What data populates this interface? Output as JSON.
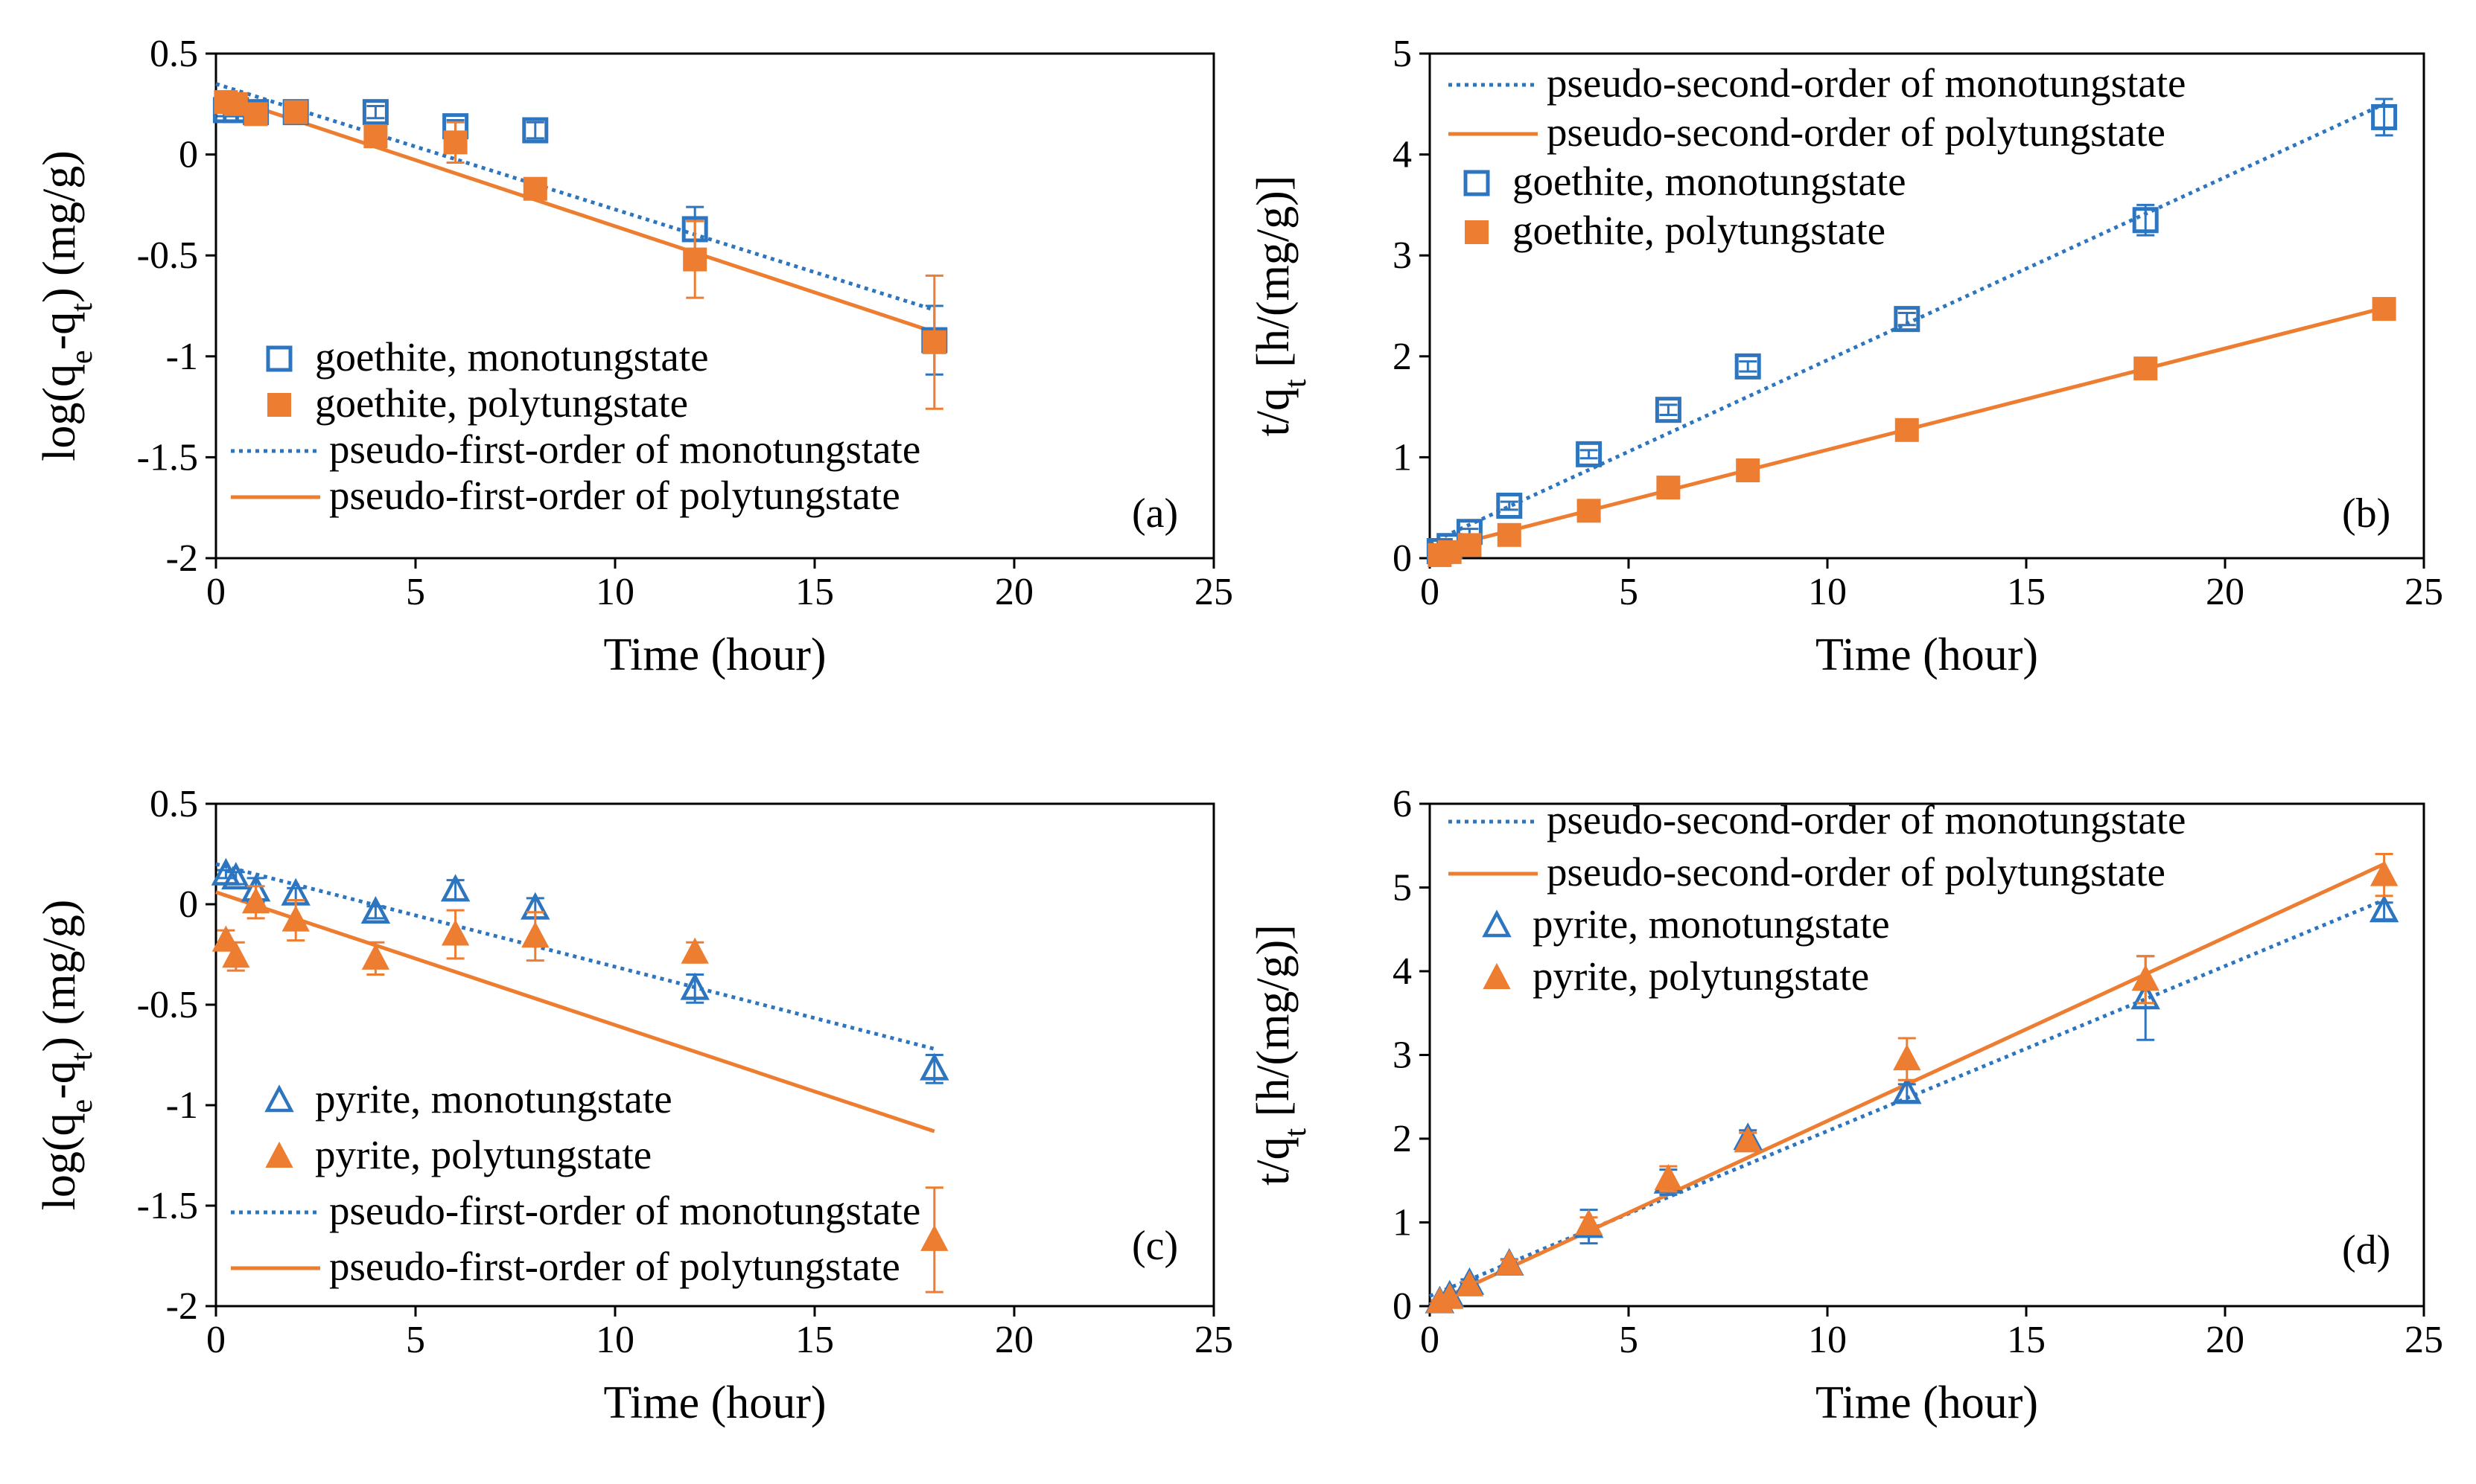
{
  "colors": {
    "mono": "#2E75C0",
    "poly": "#ED7D31",
    "axis": "#000000"
  },
  "chart_data": [
    {
      "panel": "a",
      "type": "scatter",
      "title": "",
      "panel_label": "(a)",
      "xlabel": "Time (hour)",
      "ylabel": {
        "pre": "log(q",
        "s1": "e",
        "mid": "-q",
        "s2": "t",
        "post": ") (mg/g)"
      },
      "xlim": [
        0,
        25
      ],
      "ylim": [
        -2,
        0.5
      ],
      "xticks": [
        0,
        5,
        10,
        15,
        20,
        25
      ],
      "yticks": [
        0.5,
        0,
        -0.5,
        -1,
        -1.5,
        -2
      ],
      "ytick_labels": [
        "0.5",
        "0",
        "-0.5",
        "-1",
        "-1.5",
        "-2"
      ],
      "legend_position": "bottom-left",
      "legend": [
        {
          "label": "goethite, monotungstate",
          "kind": "open-square",
          "color": "mono"
        },
        {
          "label": "goethite, polytungstate",
          "kind": "filled-square",
          "color": "poly"
        },
        {
          "label": "pseudo-first-order of monotungstate",
          "kind": "dotted",
          "color": "mono"
        },
        {
          "label": "pseudo-first-order of polytungstate",
          "kind": "solid",
          "color": "poly"
        }
      ],
      "series": [
        {
          "name": "goethite, monotungstate",
          "marker": "open-square",
          "color": "mono",
          "x": [
            0.25,
            0.5,
            1,
            2,
            4,
            6,
            8,
            12,
            18
          ],
          "y": [
            0.22,
            0.22,
            0.21,
            0.21,
            0.21,
            0.14,
            0.12,
            -0.37,
            -0.92
          ],
          "err": [
            0.03,
            0.03,
            0.03,
            0.02,
            0.03,
            0.03,
            0.04,
            0.11,
            0.17
          ]
        },
        {
          "name": "goethite, polytungstate",
          "marker": "filled-square",
          "color": "poly",
          "x": [
            0.25,
            0.5,
            1,
            2,
            4,
            6,
            8,
            12,
            18
          ],
          "y": [
            0.26,
            0.25,
            0.2,
            0.21,
            0.09,
            0.06,
            -0.17,
            -0.52,
            -0.93
          ],
          "err": [
            0.02,
            0.02,
            0.03,
            0.02,
            0.03,
            0.1,
            0.03,
            0.19,
            0.33
          ]
        }
      ],
      "fits": [
        {
          "name": "pseudo-first-order of monotungstate",
          "style": "dotted",
          "color": "mono",
          "x": [
            0,
            18
          ],
          "y": [
            0.35,
            -0.77
          ]
        },
        {
          "name": "pseudo-first-order of polytungstate",
          "style": "solid",
          "color": "poly",
          "x": [
            0,
            18
          ],
          "y": [
            0.3,
            -0.88
          ]
        }
      ]
    },
    {
      "panel": "b",
      "type": "scatter",
      "title": "",
      "panel_label": "(b)",
      "xlabel": "Time (hour)",
      "ylabel": {
        "pre": "t/q",
        "s1": "t",
        "post": " [h/(mg/g)]"
      },
      "xlim": [
        0,
        25
      ],
      "ylim": [
        0,
        5
      ],
      "xticks": [
        0,
        5,
        10,
        15,
        20,
        25
      ],
      "yticks": [
        5,
        4,
        3,
        2,
        1,
        0
      ],
      "ytick_labels": [
        "5",
        "4",
        "3",
        "2",
        "1",
        "0"
      ],
      "legend_position": "top-left",
      "legend": [
        {
          "label": "pseudo-second-order of monotungstate",
          "kind": "dotted",
          "color": "mono"
        },
        {
          "label": "pseudo-second-order of polytungstate",
          "kind": "solid",
          "color": "poly"
        },
        {
          "label": "goethite, monotungstate",
          "kind": "open-square",
          "color": "mono"
        },
        {
          "label": "goethite, polytungstate",
          "kind": "filled-square",
          "color": "poly"
        }
      ],
      "series": [
        {
          "name": "goethite, monotungstate",
          "marker": "open-square",
          "color": "mono",
          "x": [
            0.25,
            0.5,
            1,
            2,
            4,
            6,
            8,
            12,
            18,
            24
          ],
          "y": [
            0.07,
            0.12,
            0.26,
            0.52,
            1.03,
            1.47,
            1.9,
            2.37,
            3.35,
            4.37
          ],
          "err": [
            0.02,
            0.02,
            0.03,
            0.04,
            0.04,
            0.05,
            0.05,
            0.06,
            0.15,
            0.18
          ]
        },
        {
          "name": "goethite, polytungstate",
          "marker": "filled-square",
          "color": "poly",
          "x": [
            0.25,
            0.5,
            1,
            2,
            4,
            6,
            8,
            12,
            18,
            24
          ],
          "y": [
            0.03,
            0.06,
            0.13,
            0.23,
            0.47,
            0.7,
            0.87,
            1.27,
            1.88,
            2.47
          ],
          "err": [
            0.01,
            0.01,
            0.02,
            0.02,
            0.03,
            0.03,
            0.03,
            0.03,
            0.03,
            0.03
          ]
        }
      ],
      "fits": [
        {
          "name": "pseudo-second-order of monotungstate",
          "style": "dotted",
          "color": "mono",
          "x": [
            0,
            24
          ],
          "y": [
            0.15,
            4.5
          ]
        },
        {
          "name": "pseudo-second-order of polytungstate",
          "style": "solid",
          "color": "poly",
          "x": [
            0,
            24
          ],
          "y": [
            0.07,
            2.48
          ]
        }
      ]
    },
    {
      "panel": "c",
      "type": "scatter",
      "title": "",
      "panel_label": "(c)",
      "xlabel": "Time (hour)",
      "ylabel": {
        "pre": "log(q",
        "s1": "e",
        "mid": "-q",
        "s2": "t",
        "post": ") (mg/g)"
      },
      "xlim": [
        0,
        25
      ],
      "ylim": [
        -2,
        0.5
      ],
      "xticks": [
        0,
        5,
        10,
        15,
        20,
        25
      ],
      "yticks": [
        0.5,
        0,
        -0.5,
        -1,
        -1.5,
        -2
      ],
      "ytick_labels": [
        "0.5",
        "0",
        "-0.5",
        "-1",
        "-1.5",
        "-2"
      ],
      "legend_position": "bottom-left",
      "legend": [
        {
          "label": "pyrite, monotungstate",
          "kind": "open-triangle",
          "color": "mono"
        },
        {
          "label": "pyrite, polytungstate",
          "kind": "filled-triangle",
          "color": "poly"
        },
        {
          "label": "pseudo-first-order of monotungstate",
          "kind": "dotted",
          "color": "mono"
        },
        {
          "label": "pseudo-first-order of polytungstate",
          "kind": "solid",
          "color": "poly"
        }
      ],
      "series": [
        {
          "name": "pyrite, monotungstate",
          "marker": "open-triangle",
          "color": "mono",
          "x": [
            0.25,
            0.5,
            1,
            2,
            4,
            6,
            8,
            12,
            18
          ],
          "y": [
            0.15,
            0.13,
            0.07,
            0.05,
            -0.04,
            0.07,
            -0.02,
            -0.42,
            -0.82
          ],
          "err": [
            0.02,
            0.03,
            0.06,
            0.03,
            0.03,
            0.05,
            0.05,
            0.07,
            0.07
          ]
        },
        {
          "name": "pyrite, polytungstate",
          "marker": "filled-triangle",
          "color": "poly",
          "x": [
            0.25,
            0.5,
            1,
            2,
            4,
            6,
            8,
            12,
            18
          ],
          "y": [
            -0.18,
            -0.26,
            0.01,
            -0.08,
            -0.27,
            -0.15,
            -0.16,
            -0.24,
            -1.67
          ],
          "err": [
            0.05,
            0.07,
            0.08,
            0.1,
            0.08,
            0.12,
            0.12,
            0.05,
            0.26
          ]
        }
      ],
      "fits": [
        {
          "name": "pseudo-first-order of monotungstate",
          "style": "dotted",
          "color": "mono",
          "x": [
            0,
            18
          ],
          "y": [
            0.2,
            -0.72
          ]
        },
        {
          "name": "pseudo-first-order of polytungstate",
          "style": "solid",
          "color": "poly",
          "x": [
            0,
            18
          ],
          "y": [
            0.06,
            -1.13
          ]
        }
      ]
    },
    {
      "panel": "d",
      "type": "scatter",
      "title": "",
      "panel_label": "(d)",
      "xlabel": "Time (hour)",
      "ylabel": {
        "pre": "t/q",
        "s1": "t",
        "post": " [h/(mg/g)]"
      },
      "xlim": [
        0,
        25
      ],
      "ylim": [
        0,
        6
      ],
      "xticks": [
        0,
        5,
        10,
        15,
        20,
        25
      ],
      "yticks": [
        6,
        5,
        4,
        3,
        2,
        1,
        0
      ],
      "ytick_labels": [
        "6",
        "5",
        "4",
        "3",
        "2",
        "1",
        "0"
      ],
      "legend_position": "top-left",
      "legend": [
        {
          "label": "pseudo-second-order of monotungstate",
          "kind": "dotted",
          "color": "mono"
        },
        {
          "label": "pseudo-second-order of polytungstate",
          "kind": "solid",
          "color": "poly"
        },
        {
          "label": "pyrite, monotungstate",
          "kind": "open-triangle",
          "color": "mono"
        },
        {
          "label": "pyrite, polytungstate",
          "kind": "filled-triangle",
          "color": "poly"
        }
      ],
      "series": [
        {
          "name": "pyrite, monotungstate",
          "marker": "open-triangle",
          "color": "mono",
          "x": [
            0.25,
            0.5,
            1,
            2,
            4,
            6,
            8,
            12,
            18,
            24
          ],
          "y": [
            0.05,
            0.12,
            0.27,
            0.5,
            0.95,
            1.48,
            2.0,
            2.55,
            3.68,
            4.72
          ],
          "err": [
            0.02,
            0.03,
            0.05,
            0.06,
            0.2,
            0.15,
            0.1,
            0.1,
            0.5,
            0.1
          ]
        },
        {
          "name": "pyrite, polytungstate",
          "marker": "filled-triangle",
          "color": "poly",
          "x": [
            0.25,
            0.5,
            1,
            2,
            4,
            6,
            8,
            12,
            18,
            24
          ],
          "y": [
            0.05,
            0.1,
            0.25,
            0.5,
            0.98,
            1.52,
            1.97,
            2.95,
            3.9,
            5.15
          ],
          "err": [
            0.02,
            0.03,
            0.04,
            0.05,
            0.08,
            0.15,
            0.1,
            0.25,
            0.28,
            0.25
          ]
        }
      ],
      "fits": [
        {
          "name": "pseudo-second-order of monotungstate",
          "style": "dotted",
          "color": "mono",
          "x": [
            0,
            24
          ],
          "y": [
            0.12,
            4.85
          ]
        },
        {
          "name": "pseudo-second-order of polytungstate",
          "style": "solid",
          "color": "poly",
          "x": [
            0,
            24
          ],
          "y": [
            0.02,
            5.28
          ]
        }
      ]
    }
  ]
}
